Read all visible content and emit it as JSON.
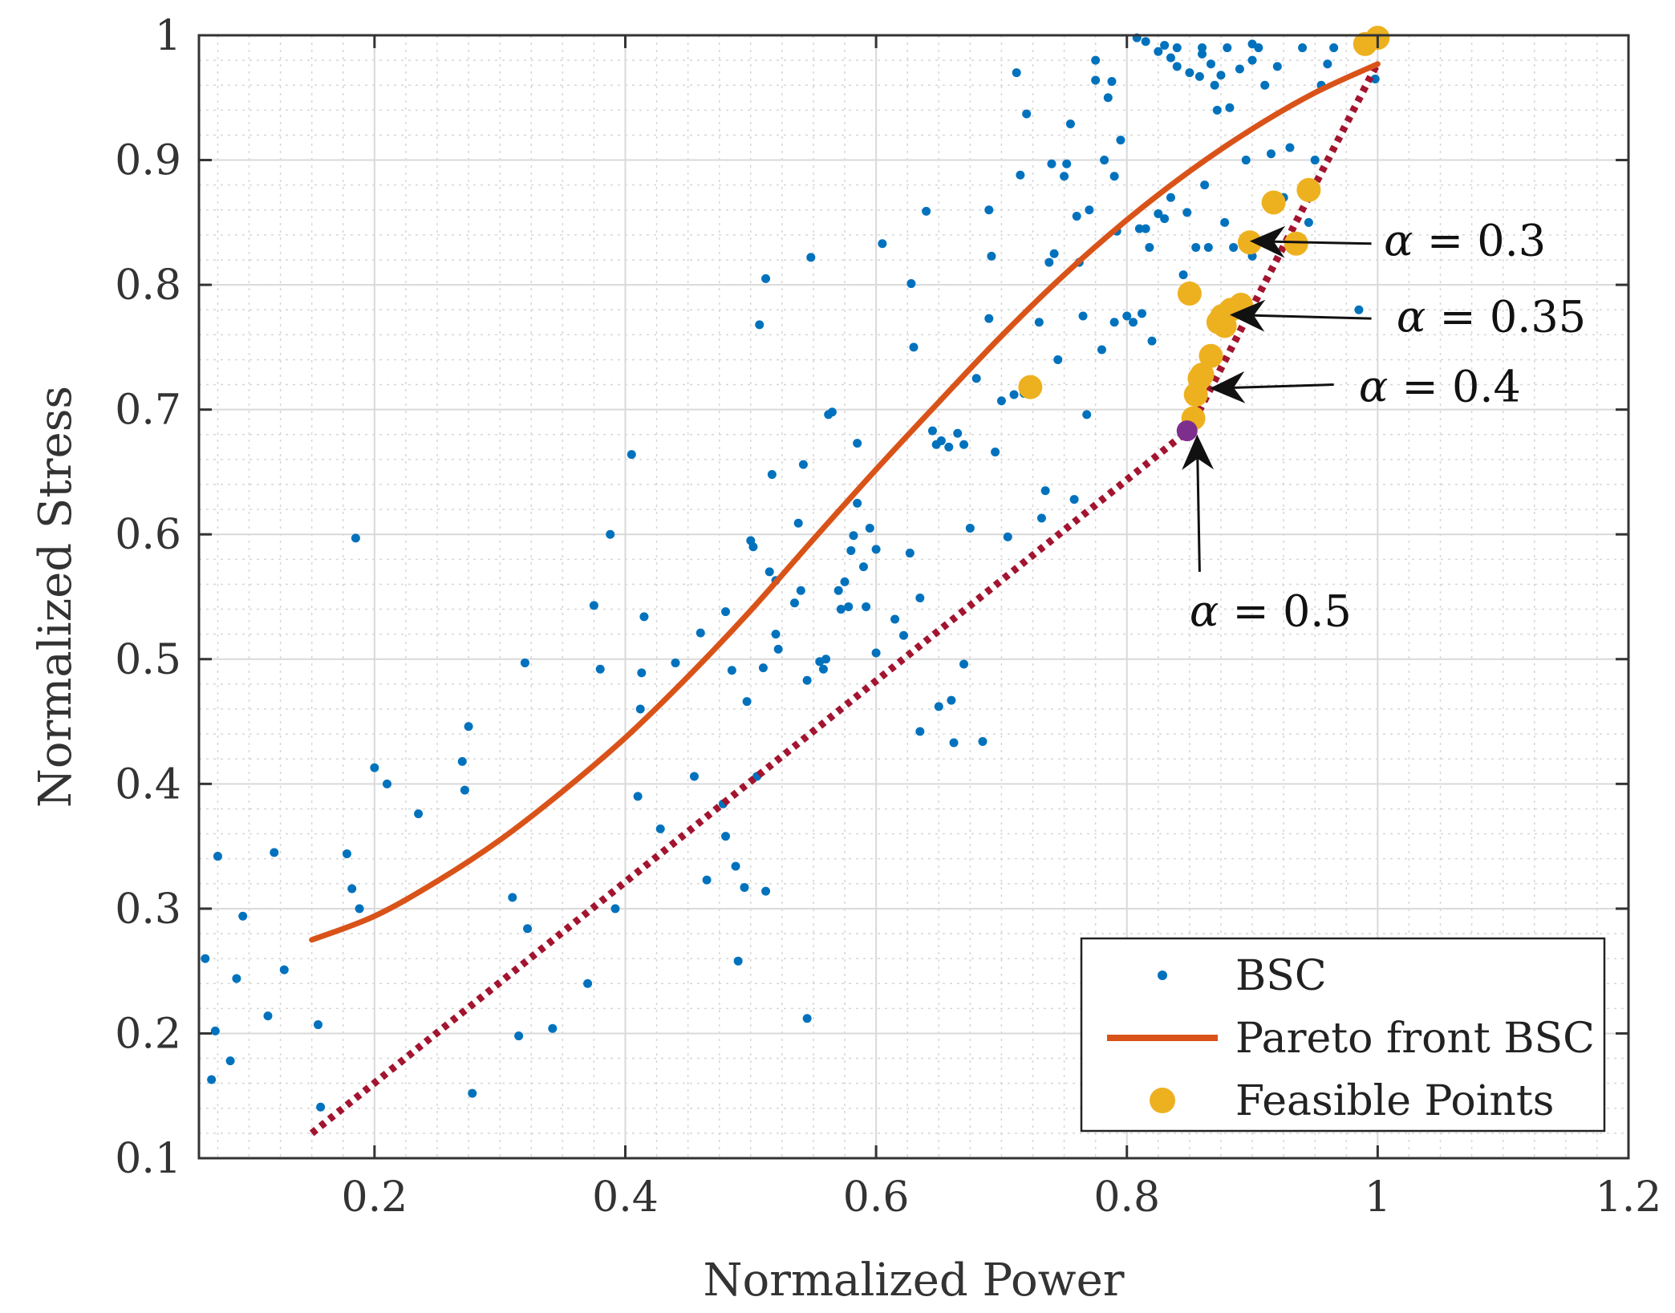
{
  "chart_data": {
    "type": "scatter",
    "xlabel": "Normalized Power",
    "ylabel": "Normalized Stress",
    "xlim": [
      0.06,
      1.2
    ],
    "ylim": [
      0.1,
      1.0
    ],
    "x_ticks": [
      {
        "value": 0.2,
        "label": "0.2"
      },
      {
        "value": 0.4,
        "label": "0.4"
      },
      {
        "value": 0.6,
        "label": "0.6"
      },
      {
        "value": 0.8,
        "label": "0.8"
      },
      {
        "value": 1.0,
        "label": "1"
      },
      {
        "value": 1.2,
        "label": "1.2"
      }
    ],
    "y_ticks": [
      {
        "value": 0.1,
        "label": "0.1"
      },
      {
        "value": 0.2,
        "label": "0.2"
      },
      {
        "value": 0.3,
        "label": "0.3"
      },
      {
        "value": 0.4,
        "label": "0.4"
      },
      {
        "value": 0.5,
        "label": "0.5"
      },
      {
        "value": 0.6,
        "label": "0.6"
      },
      {
        "value": 0.7,
        "label": "0.7"
      },
      {
        "value": 0.8,
        "label": "0.8"
      },
      {
        "value": 0.9,
        "label": "0.9"
      },
      {
        "value": 1.0,
        "label": "1"
      }
    ],
    "grid": true,
    "minor_grid": true,
    "colors": {
      "bsc": "#0072bd",
      "pareto": "#d95319",
      "feasible": "#edb120",
      "linear": "#a2142f",
      "selected": "#7e2f8e",
      "axis": "#333333",
      "grid": "#d9d9d9"
    },
    "series": [
      {
        "name": "BSC",
        "kind": "points",
        "points": [
          [
            0.065,
            0.26
          ],
          [
            0.07,
            0.163
          ],
          [
            0.073,
            0.202
          ],
          [
            0.075,
            0.342
          ],
          [
            0.085,
            0.178
          ],
          [
            0.09,
            0.244
          ],
          [
            0.095,
            0.294
          ],
          [
            0.115,
            0.214
          ],
          [
            0.12,
            0.345
          ],
          [
            0.128,
            0.251
          ],
          [
            0.155,
            0.207
          ],
          [
            0.157,
            0.141
          ],
          [
            0.178,
            0.344
          ],
          [
            0.182,
            0.316
          ],
          [
            0.185,
            0.597
          ],
          [
            0.188,
            0.3
          ],
          [
            0.2,
            0.413
          ],
          [
            0.21,
            0.4
          ],
          [
            0.235,
            0.376
          ],
          [
            0.27,
            0.418
          ],
          [
            0.272,
            0.395
          ],
          [
            0.275,
            0.446
          ],
          [
            0.278,
            0.152
          ],
          [
            0.31,
            0.309
          ],
          [
            0.32,
            0.497
          ],
          [
            0.322,
            0.284
          ],
          [
            0.342,
            0.204
          ],
          [
            0.315,
            0.198
          ],
          [
            0.37,
            0.24
          ],
          [
            0.375,
            0.543
          ],
          [
            0.38,
            0.492
          ],
          [
            0.388,
            0.6
          ],
          [
            0.392,
            0.3
          ],
          [
            0.405,
            0.664
          ],
          [
            0.41,
            0.39
          ],
          [
            0.412,
            0.46
          ],
          [
            0.413,
            0.489
          ],
          [
            0.415,
            0.534
          ],
          [
            0.428,
            0.364
          ],
          [
            0.44,
            0.497
          ],
          [
            0.455,
            0.406
          ],
          [
            0.46,
            0.521
          ],
          [
            0.465,
            0.323
          ],
          [
            0.478,
            0.384
          ],
          [
            0.48,
            0.358
          ],
          [
            0.485,
            0.491
          ],
          [
            0.488,
            0.334
          ],
          [
            0.49,
            0.258
          ],
          [
            0.48,
            0.538
          ],
          [
            0.495,
            0.317
          ],
          [
            0.497,
            0.466
          ],
          [
            0.5,
            0.595
          ],
          [
            0.502,
            0.59
          ],
          [
            0.505,
            0.406
          ],
          [
            0.507,
            0.768
          ],
          [
            0.51,
            0.493
          ],
          [
            0.512,
            0.314
          ],
          [
            0.512,
            0.805
          ],
          [
            0.515,
            0.57
          ],
          [
            0.517,
            0.648
          ],
          [
            0.52,
            0.563
          ],
          [
            0.52,
            0.52
          ],
          [
            0.522,
            0.508
          ],
          [
            0.535,
            0.545
          ],
          [
            0.538,
            0.609
          ],
          [
            0.54,
            0.555
          ],
          [
            0.542,
            0.656
          ],
          [
            0.545,
            0.483
          ],
          [
            0.545,
            0.212
          ],
          [
            0.548,
            0.822
          ],
          [
            0.555,
            0.498
          ],
          [
            0.558,
            0.492
          ],
          [
            0.56,
            0.5
          ],
          [
            0.562,
            0.696
          ],
          [
            0.565,
            0.698
          ],
          [
            0.57,
            0.555
          ],
          [
            0.572,
            0.54
          ],
          [
            0.575,
            0.562
          ],
          [
            0.578,
            0.542
          ],
          [
            0.58,
            0.587
          ],
          [
            0.582,
            0.599
          ],
          [
            0.585,
            0.625
          ],
          [
            0.585,
            0.673
          ],
          [
            0.59,
            0.574
          ],
          [
            0.592,
            0.542
          ],
          [
            0.595,
            0.605
          ],
          [
            0.6,
            0.505
          ],
          [
            0.6,
            0.588
          ],
          [
            0.605,
            0.833
          ],
          [
            0.615,
            0.532
          ],
          [
            0.622,
            0.519
          ],
          [
            0.627,
            0.585
          ],
          [
            0.628,
            0.801
          ],
          [
            0.63,
            0.75
          ],
          [
            0.635,
            0.442
          ],
          [
            0.635,
            0.549
          ],
          [
            0.64,
            0.859
          ],
          [
            0.645,
            0.683
          ],
          [
            0.648,
            0.672
          ],
          [
            0.65,
            0.462
          ],
          [
            0.652,
            0.675
          ],
          [
            0.658,
            0.67
          ],
          [
            0.66,
            0.467
          ],
          [
            0.662,
            0.433
          ],
          [
            0.665,
            0.681
          ],
          [
            0.67,
            0.672
          ],
          [
            0.67,
            0.496
          ],
          [
            0.675,
            0.605
          ],
          [
            0.68,
            0.725
          ],
          [
            0.685,
            0.434
          ],
          [
            0.69,
            0.86
          ],
          [
            0.69,
            0.773
          ],
          [
            0.692,
            0.823
          ],
          [
            0.695,
            0.666
          ],
          [
            0.7,
            0.707
          ],
          [
            0.705,
            0.598
          ],
          [
            0.71,
            0.712
          ],
          [
            0.715,
            0.888
          ],
          [
            0.712,
            0.97
          ],
          [
            0.718,
            0.713
          ],
          [
            0.72,
            0.937
          ],
          [
            0.725,
            0.718
          ],
          [
            0.73,
            0.77
          ],
          [
            0.732,
            0.613
          ],
          [
            0.735,
            0.635
          ],
          [
            0.738,
            0.818
          ],
          [
            0.74,
            0.897
          ],
          [
            0.742,
            0.825
          ],
          [
            0.745,
            0.74
          ],
          [
            0.75,
            0.887
          ],
          [
            0.752,
            0.897
          ],
          [
            0.755,
            0.929
          ],
          [
            0.758,
            0.628
          ],
          [
            0.76,
            0.855
          ],
          [
            0.762,
            0.818
          ],
          [
            0.765,
            0.775
          ],
          [
            0.768,
            0.696
          ],
          [
            0.77,
            0.86
          ],
          [
            0.775,
            0.964
          ],
          [
            0.775,
            0.98
          ],
          [
            0.78,
            0.748
          ],
          [
            0.782,
            0.9
          ],
          [
            0.785,
            0.95
          ],
          [
            0.788,
            0.963
          ],
          [
            0.79,
            0.887
          ],
          [
            0.79,
            0.77
          ],
          [
            0.792,
            0.843
          ],
          [
            0.795,
            0.916
          ],
          [
            0.8,
            0.775
          ],
          [
            0.805,
            0.77
          ],
          [
            0.808,
            0.998
          ],
          [
            0.81,
            0.845
          ],
          [
            0.812,
            0.777
          ],
          [
            0.815,
            0.845
          ],
          [
            0.818,
            0.83
          ],
          [
            0.82,
            0.755
          ],
          [
            0.825,
            0.857
          ],
          [
            0.83,
            0.853
          ],
          [
            0.835,
            0.87
          ],
          [
            0.84,
            0.975
          ],
          [
            0.845,
            0.808
          ],
          [
            0.848,
            0.858
          ],
          [
            0.85,
            0.97
          ],
          [
            0.852,
            0.793
          ],
          [
            0.855,
            0.83
          ],
          [
            0.858,
            0.967
          ],
          [
            0.862,
            0.88
          ],
          [
            0.865,
            0.83
          ],
          [
            0.867,
            0.977
          ],
          [
            0.87,
            0.96
          ],
          [
            0.872,
            0.94
          ],
          [
            0.875,
            0.968
          ],
          [
            0.878,
            0.85
          ],
          [
            0.882,
            0.942
          ],
          [
            0.885,
            0.83
          ],
          [
            0.89,
            0.973
          ],
          [
            0.895,
            0.9
          ],
          [
            0.9,
            0.823
          ],
          [
            0.9,
            0.98
          ],
          [
            0.905,
            0.99
          ],
          [
            0.91,
            0.96
          ],
          [
            0.915,
            0.905
          ],
          [
            0.92,
            0.975
          ],
          [
            0.925,
            0.87
          ],
          [
            0.93,
            0.91
          ],
          [
            0.94,
            0.99
          ],
          [
            0.945,
            0.85
          ],
          [
            0.95,
            0.9
          ],
          [
            0.955,
            0.96
          ],
          [
            0.96,
            0.977
          ],
          [
            0.965,
            0.99
          ],
          [
            0.985,
            0.78
          ],
          [
            0.99,
            0.99
          ],
          [
            0.998,
            0.965
          ],
          [
            0.84,
            0.99
          ],
          [
            0.83,
            0.992
          ],
          [
            0.86,
            0.99
          ],
          [
            0.88,
            0.99
          ],
          [
            0.815,
            0.995
          ],
          [
            0.9,
            0.993
          ],
          [
            0.825,
            0.987
          ],
          [
            0.86,
            0.985
          ],
          [
            0.835,
            0.982
          ]
        ]
      },
      {
        "name": "Pareto front BSC",
        "kind": "line",
        "points": [
          [
            0.15,
            0.275
          ],
          [
            0.2,
            0.294
          ],
          [
            0.25,
            0.322
          ],
          [
            0.3,
            0.355
          ],
          [
            0.35,
            0.394
          ],
          [
            0.4,
            0.437
          ],
          [
            0.45,
            0.486
          ],
          [
            0.5,
            0.539
          ],
          [
            0.55,
            0.596
          ],
          [
            0.6,
            0.652
          ],
          [
            0.65,
            0.706
          ],
          [
            0.7,
            0.759
          ],
          [
            0.75,
            0.808
          ],
          [
            0.8,
            0.852
          ],
          [
            0.85,
            0.891
          ],
          [
            0.9,
            0.925
          ],
          [
            0.95,
            0.954
          ],
          [
            1.0,
            0.977
          ]
        ]
      },
      {
        "name": "Feasible Points",
        "kind": "points",
        "points": [
          [
            0.723,
            0.718
          ],
          [
            0.85,
            0.793
          ],
          [
            0.853,
            0.693
          ],
          [
            0.855,
            0.712
          ],
          [
            0.858,
            0.725
          ],
          [
            0.86,
            0.728
          ],
          [
            0.867,
            0.743
          ],
          [
            0.873,
            0.77
          ],
          [
            0.876,
            0.775
          ],
          [
            0.878,
            0.767
          ],
          [
            0.883,
            0.78
          ],
          [
            0.891,
            0.784
          ],
          [
            0.898,
            0.834
          ],
          [
            0.917,
            0.866
          ],
          [
            0.935,
            0.833
          ],
          [
            0.945,
            0.876
          ],
          [
            0.99,
            0.993
          ],
          [
            1.0,
            0.998
          ]
        ]
      },
      {
        "name": "Linear boundary",
        "kind": "dotted-line",
        "points": [
          [
            0.15,
            0.12
          ],
          [
            0.85,
            0.684
          ],
          [
            1.0,
            0.978
          ]
        ]
      },
      {
        "name": "Selected point",
        "kind": "marker",
        "points": [
          [
            0.848,
            0.683
          ]
        ]
      }
    ],
    "legend": {
      "location": "bottom-right",
      "entries": [
        {
          "label": "BSC",
          "kind": "dot"
        },
        {
          "label": "Pareto front BSC",
          "kind": "line"
        },
        {
          "label": "Feasible Points",
          "kind": "marker"
        }
      ]
    },
    "annotations": [
      {
        "id": "a03",
        "symbol": "α",
        "rest": "= 0.3",
        "text_at": [
          1.005,
          0.835
        ],
        "tail": [
          0.995,
          0.833
        ],
        "head": [
          0.898,
          0.835
        ]
      },
      {
        "id": "a035",
        "symbol": "α",
        "rest": "= 0.35",
        "text_at": [
          1.015,
          0.774
        ],
        "tail": [
          0.995,
          0.773
        ],
        "head": [
          0.882,
          0.776
        ]
      },
      {
        "id": "a04",
        "symbol": "α",
        "rest": "= 0.4",
        "text_at": [
          0.985,
          0.718
        ],
        "tail": [
          0.965,
          0.72
        ],
        "head": [
          0.866,
          0.717
        ]
      },
      {
        "id": "a05",
        "symbol": "α",
        "rest": "= 0.5",
        "text_at": [
          0.85,
          0.538
        ],
        "tail": [
          0.858,
          0.57
        ],
        "head": [
          0.856,
          0.68
        ]
      }
    ]
  }
}
